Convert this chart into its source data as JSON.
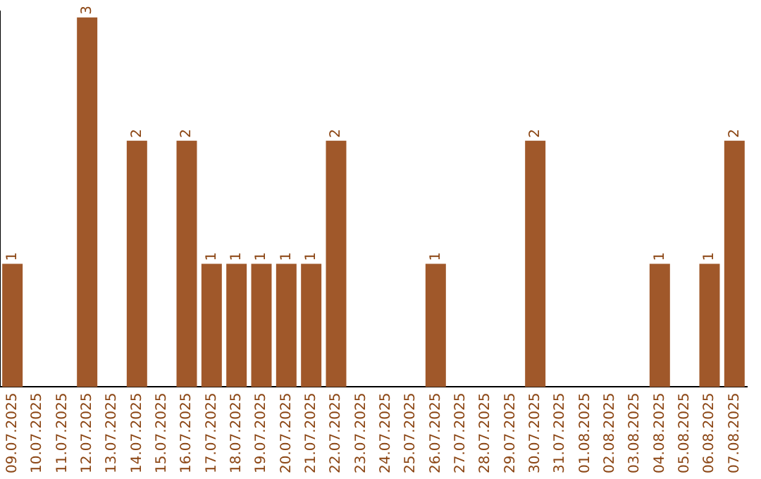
{
  "chart_data": {
    "type": "bar",
    "categories": [
      "09.07.2025",
      "10.07.2025",
      "11.07.2025",
      "12.07.2025",
      "13.07.2025",
      "14.07.2025",
      "15.07.2025",
      "16.07.2025",
      "17.07.2025",
      "18.07.2025",
      "19.07.2025",
      "20.07.2025",
      "21.07.2025",
      "22.07.2025",
      "23.07.2025",
      "24.07.2025",
      "25.07.2025",
      "26.07.2025",
      "27.07.2025",
      "28.07.2025",
      "29.07.2025",
      "30.07.2025",
      "31.07.2025",
      "01.08.2025",
      "02.08.2025",
      "03.08.2025",
      "04.08.2025",
      "05.08.2025",
      "06.08.2025",
      "07.08.2025"
    ],
    "values": [
      1,
      0,
      0,
      3,
      0,
      2,
      0,
      2,
      1,
      1,
      1,
      1,
      1,
      2,
      0,
      0,
      0,
      1,
      0,
      0,
      0,
      2,
      0,
      0,
      0,
      0,
      1,
      0,
      1,
      2
    ],
    "value_labels": [
      "1",
      null,
      null,
      "3",
      null,
      "2",
      null,
      "2",
      "1",
      "1",
      "1",
      "1",
      "1",
      "2",
      null,
      null,
      null,
      "1",
      null,
      null,
      null,
      "2",
      null,
      null,
      null,
      null,
      "1",
      null,
      "1",
      "2"
    ],
    "color": "#a0582a",
    "ylim": [
      0,
      3.05
    ],
    "tick_labels": "x",
    "grid": false,
    "legend": false
  }
}
